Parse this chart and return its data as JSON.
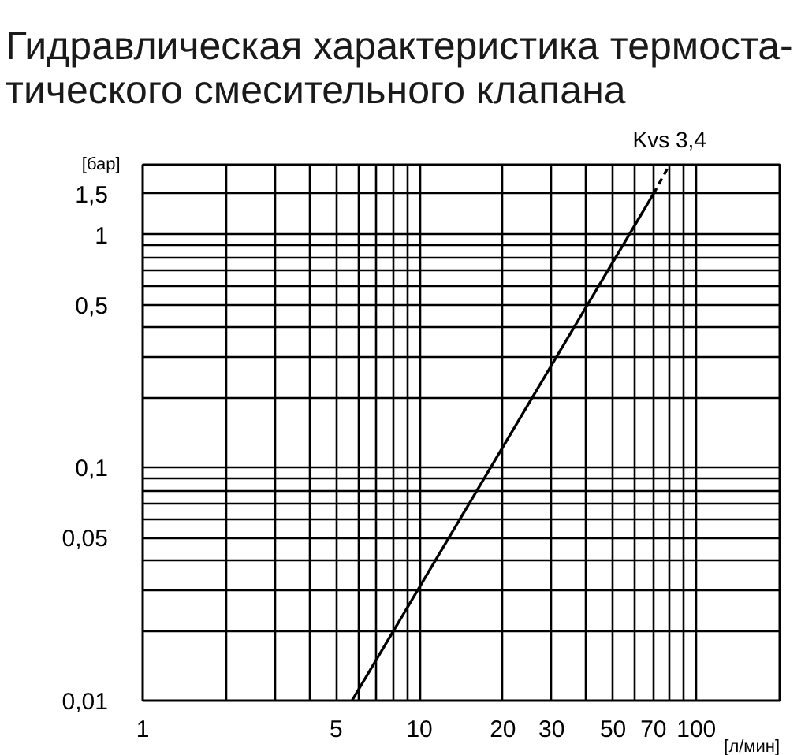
{
  "chart_data": {
    "type": "line",
    "title": "Гидравлическая характеристика термоста-\nтического смесительного клапана",
    "xlabel": "[л/мин]",
    "ylabel": "[бар]",
    "log": "xy",
    "grid": true,
    "line_style": "solid",
    "xlim": [
      1,
      200
    ],
    "ylim": [
      0.01,
      2
    ],
    "xticks": [
      1,
      {
        "value": 2,
        "label": null
      },
      {
        "value": 3,
        "label": null
      },
      {
        "value": 4,
        "label": null
      },
      5,
      {
        "value": 6,
        "label": null
      },
      {
        "value": 7,
        "label": null
      },
      {
        "value": 8,
        "label": null
      },
      {
        "value": 9,
        "label": null
      },
      10,
      20,
      30,
      {
        "value": 40,
        "label": null
      },
      50,
      {
        "value": 60,
        "label": null
      },
      70,
      {
        "value": 80,
        "label": null
      },
      {
        "value": 90,
        "label": null
      },
      100
    ],
    "yticks": [
      {
        "value": 0.01,
        "label": "0,01"
      },
      {
        "value": 0.02,
        "label": null
      },
      {
        "value": 0.03,
        "label": null
      },
      {
        "value": 0.04,
        "label": null
      },
      {
        "value": 0.05,
        "label": "0,05"
      },
      {
        "value": 0.06,
        "label": null
      },
      {
        "value": 0.07,
        "label": null
      },
      {
        "value": 0.08,
        "label": null
      },
      {
        "value": 0.09,
        "label": null
      },
      {
        "value": 0.1,
        "label": "0,1"
      },
      {
        "value": 0.2,
        "label": null
      },
      {
        "value": 0.3,
        "label": null
      },
      {
        "value": 0.4,
        "label": null
      },
      {
        "value": 0.5,
        "label": "0,5"
      },
      {
        "value": 0.6,
        "label": null
      },
      {
        "value": 0.7,
        "label": null
      },
      {
        "value": 0.8,
        "label": null
      },
      {
        "value": 0.9,
        "label": null
      },
      1,
      {
        "value": 1.5,
        "label": "1,5"
      }
    ],
    "series": [
      {
        "color": "#000000",
        "x": [
          5.7,
          70
        ],
        "values": [
          0.01,
          1.5
        ]
      },
      {
        "color": "#000000",
        "x": [
          70,
          80
        ],
        "values": [
          1.5,
          2
        ],
        "line_style": "dashed"
      }
    ],
    "annotations": [
      {
        "text": "Kvs 3,4",
        "x": 80,
        "y": 2
      }
    ]
  }
}
